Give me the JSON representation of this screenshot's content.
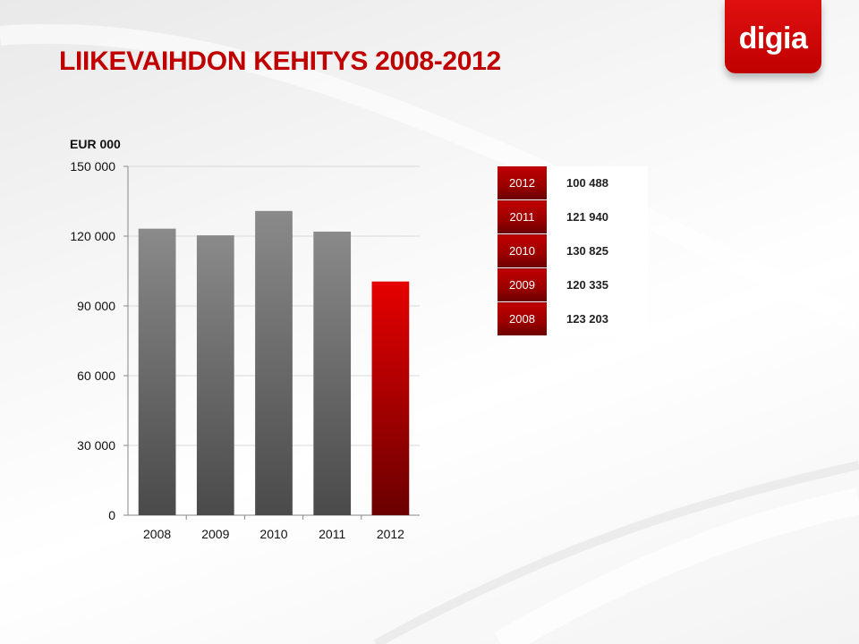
{
  "title": "LIIKEVAIHDON KEHITYS 2008-2012",
  "unit_label": "EUR 000",
  "logo_text": "digia",
  "colors": {
    "title": "#c00000",
    "accent_red": "#c00000",
    "bar_gray": "#6f6f6f",
    "table_year_bg": "#9a0000"
  },
  "chart_data": {
    "type": "bar",
    "categories": [
      "2008",
      "2009",
      "2010",
      "2011",
      "2012"
    ],
    "values": [
      123203,
      120335,
      130825,
      121940,
      100488
    ],
    "ylabel": "EUR 000",
    "ylim": [
      0,
      150000
    ],
    "yticks": [
      0,
      30000,
      60000,
      90000,
      120000,
      150000
    ],
    "ytick_labels": [
      "0",
      "30 000",
      "60 000",
      "90 000",
      "120 000",
      "150 000"
    ],
    "grid": true,
    "highlight_category": "2012"
  },
  "value_table": [
    {
      "year": "2012",
      "value": "100 488"
    },
    {
      "year": "2011",
      "value": "121 940"
    },
    {
      "year": "2010",
      "value": "130 825"
    },
    {
      "year": "2009",
      "value": "120 335"
    },
    {
      "year": "2008",
      "value": "123 203"
    }
  ]
}
